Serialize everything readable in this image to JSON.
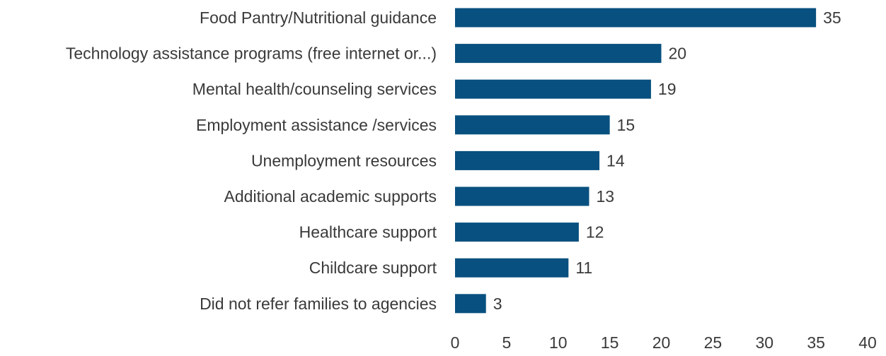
{
  "chart_data": {
    "type": "bar",
    "orientation": "horizontal",
    "categories": [
      "Food Pantry/Nutritional guidance",
      "Technology assistance programs (free internet or...)",
      "Mental health/counseling services",
      "Employment assistance /services",
      "Unemployment resources",
      "Additional academic supports",
      "Healthcare support",
      "Childcare support",
      "Did not refer families to agencies"
    ],
    "values": [
      35,
      20,
      19,
      15,
      14,
      13,
      12,
      11,
      3
    ],
    "xlim": [
      0,
      40
    ],
    "xticks": [
      0,
      5,
      10,
      15,
      20,
      25,
      30,
      35,
      40
    ],
    "grid": false,
    "legend": "none",
    "bar_color": "#08507f",
    "text_color": "#3a3a3a"
  }
}
